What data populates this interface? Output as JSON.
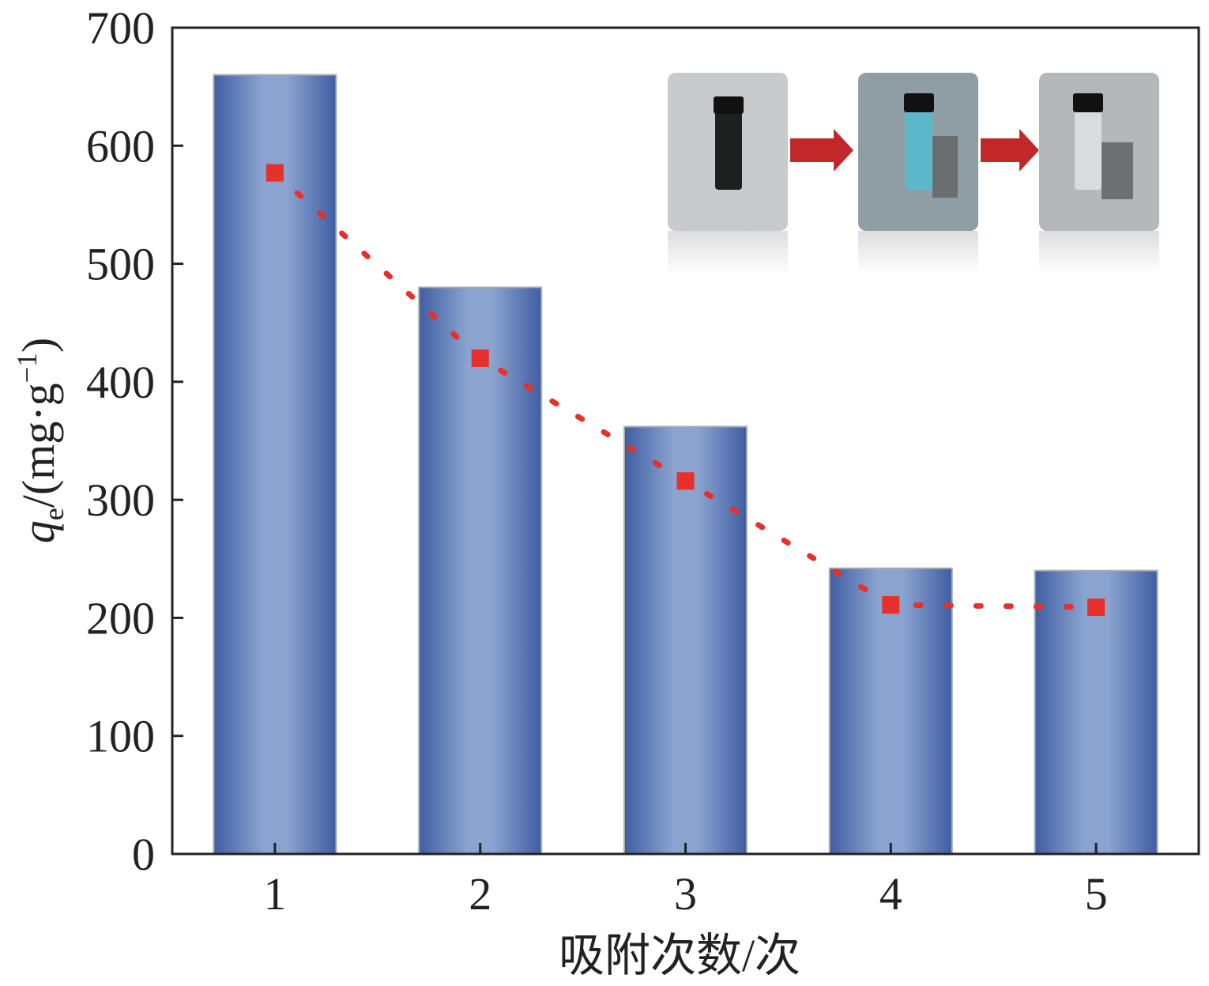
{
  "chart_data": {
    "type": "bar",
    "xlabel": "吸附次数/次",
    "ylabel": [
      "q",
      "e",
      "/(mg·g",
      "−1",
      ")"
    ],
    "categories": [
      "1",
      "2",
      "3",
      "4",
      "5"
    ],
    "series": [
      {
        "type": "bar",
        "color": "#4a67a8",
        "values": [
          660,
          480,
          362,
          242,
          240
        ]
      },
      {
        "type": "line",
        "color": "#e8302a",
        "values": [
          577,
          420,
          316,
          211,
          209
        ]
      }
    ],
    "ylim": [
      0,
      700
    ],
    "yticks": [
      0,
      100,
      200,
      300,
      400,
      500,
      600,
      700
    ]
  }
}
